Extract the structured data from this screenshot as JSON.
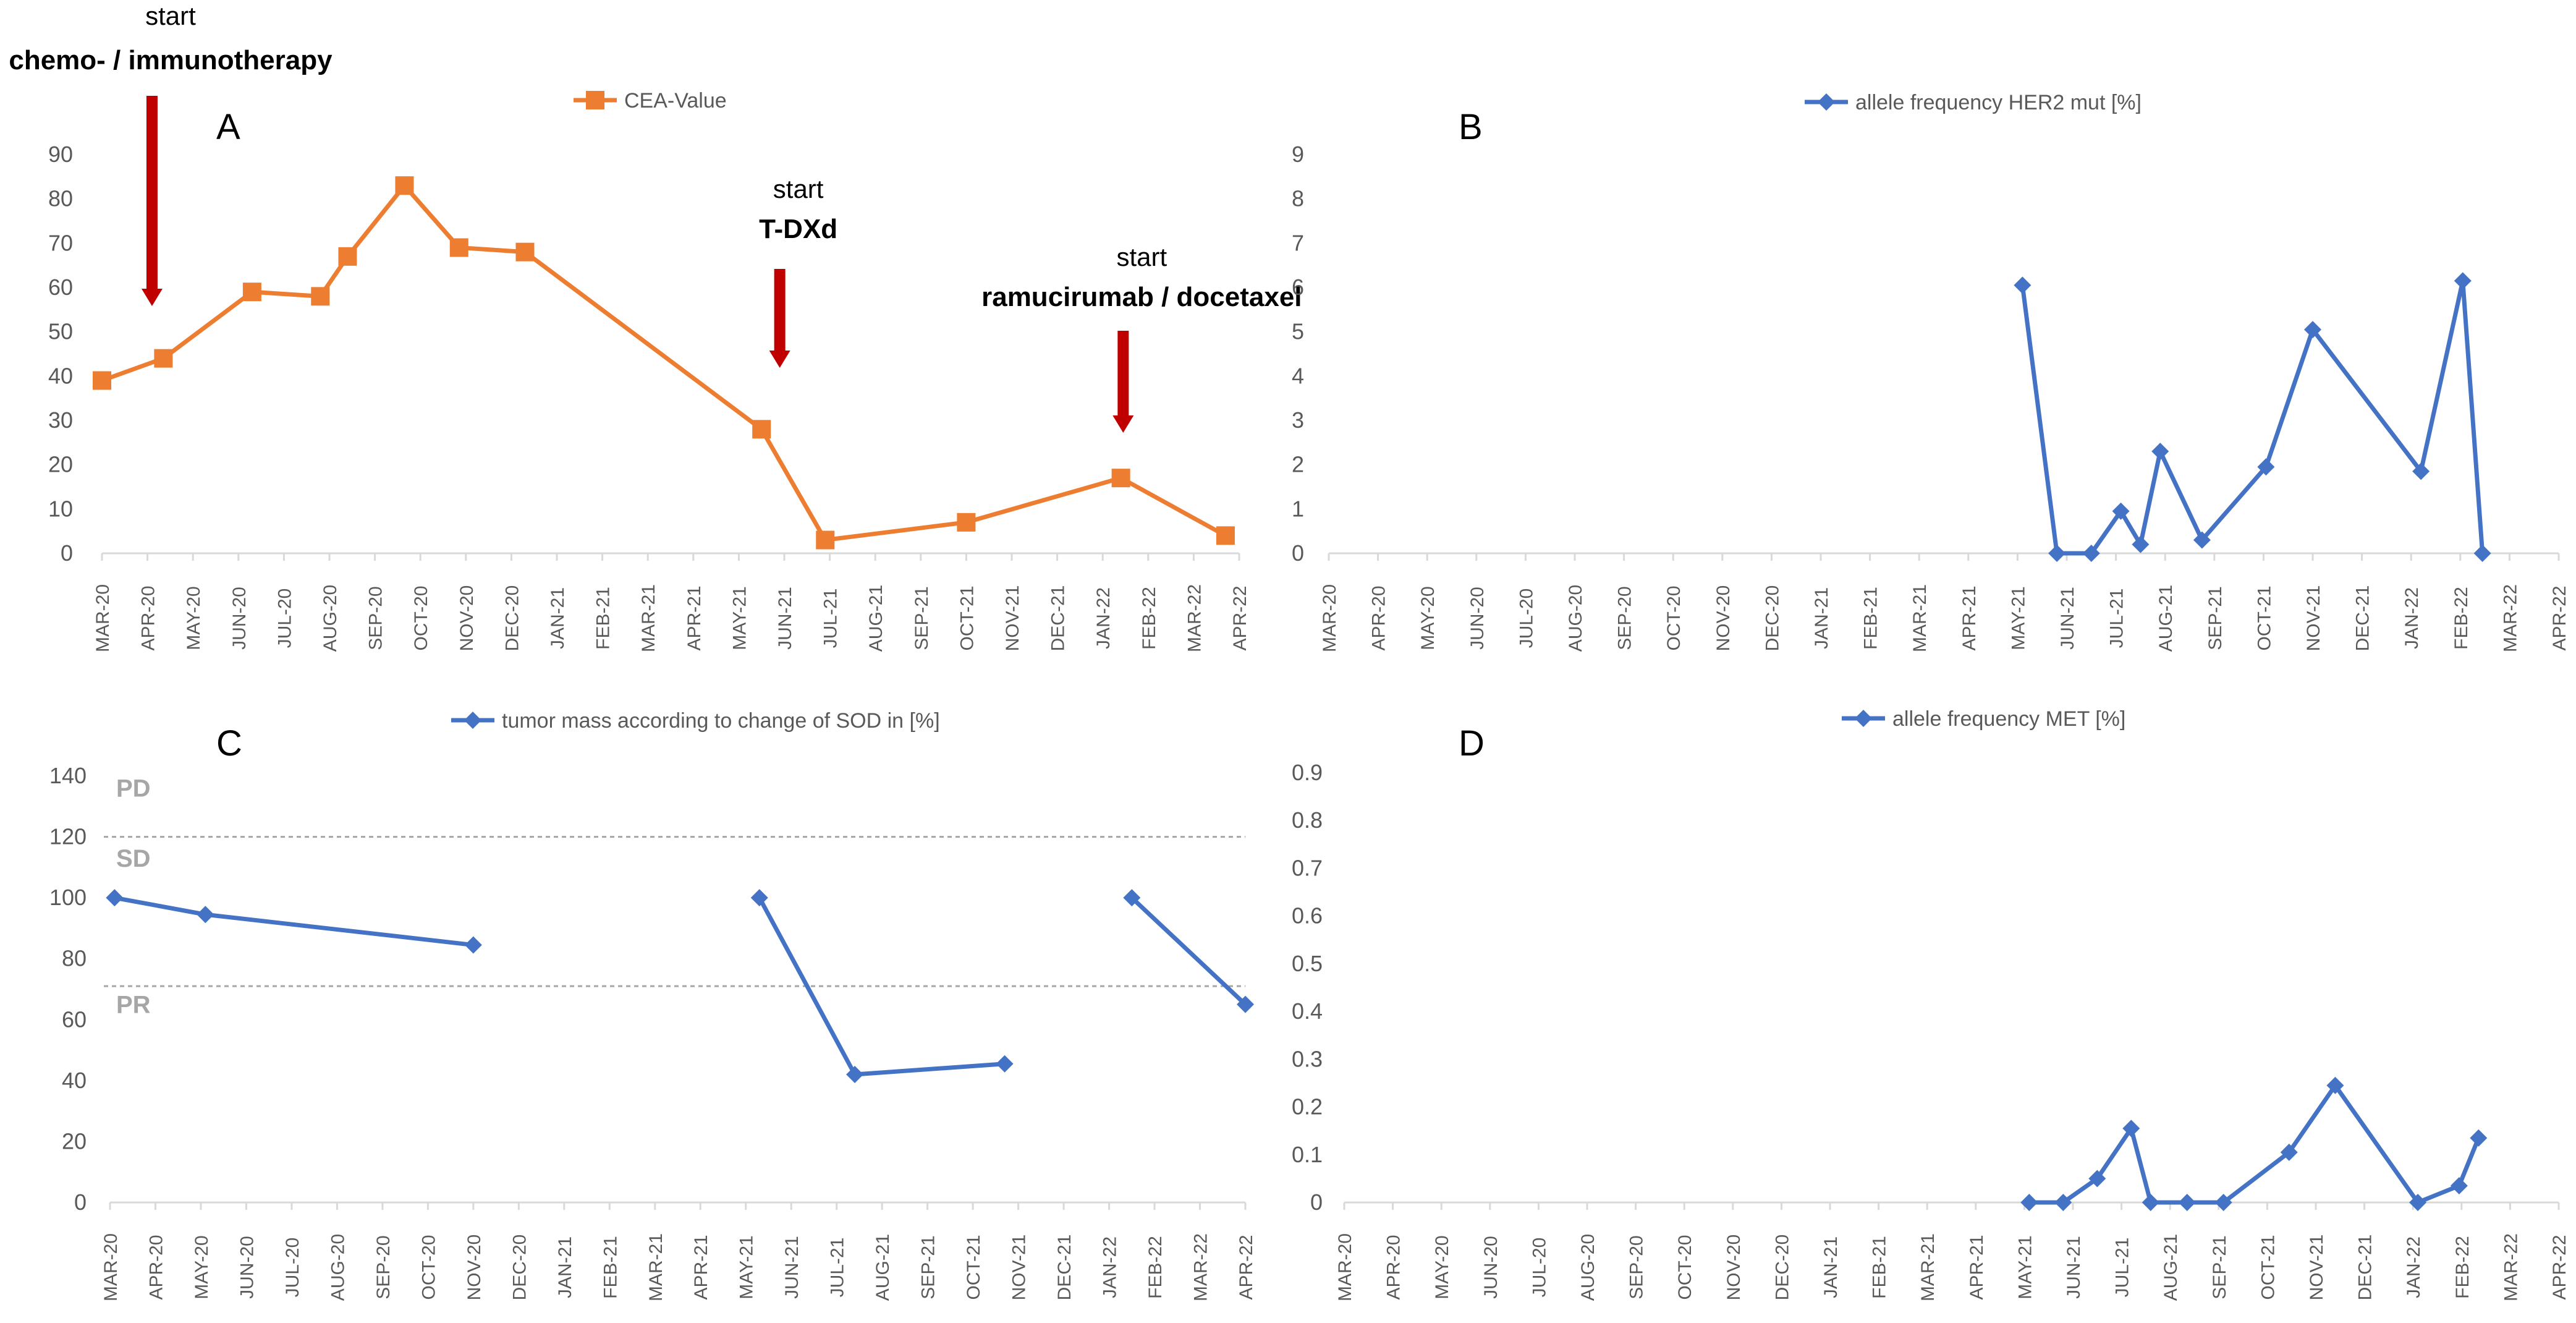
{
  "colors": {
    "cea": "#ED7D31",
    "blue": "#4472C4",
    "arrow": "#C00000",
    "axis": "#D9D9D9",
    "zone_label": "#A6A6A6"
  },
  "chart_data": [
    {
      "panel": "A",
      "type": "line",
      "legend": "CEA-Value",
      "marker": "square",
      "color": "#ED7D31",
      "ylim": [
        0,
        90
      ],
      "yticks": [
        "0",
        "10",
        "20",
        "30",
        "40",
        "50",
        "60",
        "70",
        "80",
        "90"
      ],
      "xlabels": [
        "MAR-20",
        "APR-20",
        "MAY-20",
        "JUN-20",
        "JUL-20",
        "AUG-20",
        "SEP-20",
        "OCT-20",
        "NOV-20",
        "DEC-20",
        "JAN-21",
        "FEB-21",
        "MAR-21",
        "APR-21",
        "MAY-21",
        "JUN-21",
        "JUL-21",
        "AUG-21",
        "SEP-21",
        "OCT-21",
        "NOV-21",
        "DEC-21",
        "JAN-22",
        "FEB-22",
        "MAR-22",
        "APR-22"
      ],
      "series": [
        {
          "name": "CEA-Value",
          "segments": [
            [
              {
                "x": 0.0,
                "y": 39
              },
              {
                "x": 1.35,
                "y": 44
              },
              {
                "x": 3.3,
                "y": 59
              },
              {
                "x": 4.8,
                "y": 58
              },
              {
                "x": 5.4,
                "y": 67
              },
              {
                "x": 6.65,
                "y": 83
              },
              {
                "x": 7.85,
                "y": 69
              },
              {
                "x": 9.3,
                "y": 68
              },
              {
                "x": 14.5,
                "y": 28
              },
              {
                "x": 15.9,
                "y": 3
              },
              {
                "x": 19.0,
                "y": 7
              },
              {
                "x": 22.4,
                "y": 17
              },
              {
                "x": 24.7,
                "y": 4
              }
            ]
          ]
        }
      ],
      "annotations": [
        {
          "line1": "start",
          "line2": "chemo- / immunotherapy",
          "x": 1.1
        },
        {
          "line1": "start",
          "line2": "T-DXd",
          "x": 14.9
        },
        {
          "line1": "start",
          "line2": "ramucirumab / docetaxel",
          "x": 22.45
        }
      ]
    },
    {
      "panel": "B",
      "type": "line",
      "legend": "allele frequency  HER2 mut [%]",
      "marker": "diamond",
      "color": "#4472C4",
      "ylim": [
        0,
        9
      ],
      "yticks": [
        "0",
        "1",
        "2",
        "3",
        "4",
        "5",
        "6",
        "7",
        "8",
        "9"
      ],
      "xlabels": [
        "MAR-20",
        "APR-20",
        "MAY-20",
        "JUN-20",
        "JUL-20",
        "AUG-20",
        "SEP-20",
        "OCT-20",
        "NOV-20",
        "DEC-20",
        "JAN-21",
        "FEB-21",
        "MAR-21",
        "APR-21",
        "MAY-21",
        "JUN-21",
        "JUL-21",
        "AUG-21",
        "SEP-21",
        "OCT-21",
        "NOV-21",
        "DEC-21",
        "JAN-22",
        "FEB-22",
        "MAR-22",
        "APR-22"
      ],
      "series": [
        {
          "name": "allele frequency HER2 mut",
          "segments": [
            [
              {
                "x": 14.1,
                "y": 6.05
              },
              {
                "x": 14.8,
                "y": 0.0
              },
              {
                "x": 15.5,
                "y": 0.0
              },
              {
                "x": 16.1,
                "y": 0.95
              },
              {
                "x": 16.5,
                "y": 0.2
              },
              {
                "x": 16.9,
                "y": 2.3
              },
              {
                "x": 17.75,
                "y": 0.3
              },
              {
                "x": 19.05,
                "y": 1.95
              },
              {
                "x": 20.0,
                "y": 5.05
              },
              {
                "x": 22.2,
                "y": 1.85
              },
              {
                "x": 23.05,
                "y": 6.15
              },
              {
                "x": 23.45,
                "y": 0.0
              }
            ]
          ]
        }
      ]
    },
    {
      "panel": "C",
      "type": "line",
      "legend": "tumor mass according to change of SOD in [%]",
      "marker": "diamond",
      "color": "#4472C4",
      "ylim": [
        0,
        140
      ],
      "yticks": [
        "0",
        "20",
        "40",
        "60",
        "80",
        "100",
        "120",
        "140"
      ],
      "xlabels": [
        "MAR-20",
        "APR-20",
        "MAY-20",
        "JUN-20",
        "JUL-20",
        "AUG-20",
        "SEP-20",
        "OCT-20",
        "NOV-20",
        "DEC-20",
        "JAN-21",
        "FEB-21",
        "MAR-21",
        "APR-21",
        "MAY-21",
        "JUN-21",
        "JUL-21",
        "AUG-21",
        "SEP-21",
        "OCT-21",
        "NOV-21",
        "DEC-21",
        "JAN-22",
        "FEB-22",
        "MAR-22",
        "APR-22"
      ],
      "series": [
        {
          "name": "tumor mass",
          "segments": [
            [
              {
                "x": 0.1,
                "y": 100
              },
              {
                "x": 2.1,
                "y": 94.5
              },
              {
                "x": 8.0,
                "y": 84.5
              }
            ],
            [
              {
                "x": 14.3,
                "y": 100
              },
              {
                "x": 16.4,
                "y": 42
              },
              {
                "x": 19.7,
                "y": 45.5
              }
            ],
            [
              {
                "x": 22.5,
                "y": 100
              },
              {
                "x": 25.0,
                "y": 65
              }
            ]
          ]
        }
      ],
      "reference_lines": [
        120,
        71
      ],
      "zones": [
        {
          "label": "PD",
          "y": 136
        },
        {
          "label": "SD",
          "y": 113
        },
        {
          "label": "PR",
          "y": 65
        }
      ]
    },
    {
      "panel": "D",
      "type": "line",
      "legend": "allele frequency MET  [%]",
      "marker": "diamond",
      "color": "#4472C4",
      "ylim": [
        0,
        0.9
      ],
      "yticks": [
        "0",
        "0.1",
        "0.2",
        "0.3",
        "0.4",
        "0.5",
        "0.6",
        "0.7",
        "0.8",
        "0.9"
      ],
      "xlabels": [
        "MAR-20",
        "APR-20",
        "MAY-20",
        "JUN-20",
        "JUL-20",
        "AUG-20",
        "SEP-20",
        "OCT-20",
        "NOV-20",
        "DEC-20",
        "JAN-21",
        "FEB-21",
        "MAR-21",
        "APR-21",
        "MAY-21",
        "JUN-21",
        "JUL-21",
        "AUG-21",
        "SEP-21",
        "OCT-21",
        "NOV-21",
        "DEC-21",
        "JAN-22",
        "FEB-22",
        "MAR-22",
        "APR-22"
      ],
      "series": [
        {
          "name": "allele frequency MET",
          "segments": [
            [
              {
                "x": 14.1,
                "y": 0.0
              },
              {
                "x": 14.8,
                "y": 0.0
              },
              {
                "x": 15.5,
                "y": 0.05
              },
              {
                "x": 16.2,
                "y": 0.155
              },
              {
                "x": 16.6,
                "y": 0.0
              },
              {
                "x": 17.35,
                "y": 0.0
              },
              {
                "x": 18.1,
                "y": 0.0
              },
              {
                "x": 19.45,
                "y": 0.105
              },
              {
                "x": 20.4,
                "y": 0.245
              },
              {
                "x": 22.1,
                "y": 0.0
              },
              {
                "x": 22.95,
                "y": 0.035
              },
              {
                "x": 23.35,
                "y": 0.135
              }
            ]
          ]
        }
      ]
    }
  ]
}
